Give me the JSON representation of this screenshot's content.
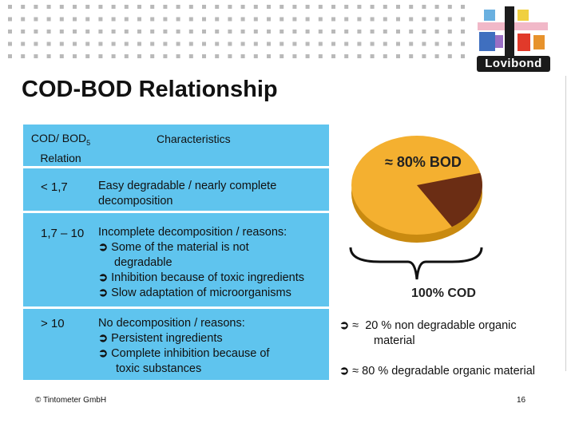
{
  "title": "COD-BOD Relationship",
  "table": {
    "header_left_line1": "COD/ BOD",
    "header_left_sub": "5",
    "header_left_line2": "Relation",
    "header_right": "Characteristics",
    "rows": [
      {
        "relation": "< 1,7",
        "lines": [
          "Easy degradable / nearly complete",
          "decomposition"
        ]
      },
      {
        "relation": "1,7 – 10",
        "lines": [
          "Incomplete decomposition / reasons:"
        ],
        "bullets": [
          "Some of the material is not",
          "degradable",
          "Inhibition because of toxic ingredients",
          "Slow adaptation of microorganisms"
        ]
      },
      {
        "relation": "> 10",
        "lines": [
          "No decomposition / reasons:"
        ],
        "bullets": [
          "Persistent ingredients",
          "Complete inhibition because of",
          "toxic substances"
        ]
      }
    ]
  },
  "figure": {
    "bod_label": "≈ 80% BOD",
    "cod_label": "100% COD",
    "slices": [
      {
        "name": "degradable",
        "fraction": 0.8,
        "color": "#f4b030"
      },
      {
        "name": "non degradable",
        "fraction": 0.2,
        "color": "#6b2d14"
      }
    ]
  },
  "notes": {
    "arrow": "➲",
    "approx": "≈",
    "note1_line1": "20 % non degradable organic",
    "note1_line2": "material",
    "note2": "80 % degradable organic material"
  },
  "footer": {
    "copyright": "© Tintometer GmbH",
    "page_number": "16"
  },
  "logo": {
    "brand": "Lovibond"
  },
  "colors": {
    "table_bg": "#5fc4ee",
    "pie_top": "#f4b030",
    "pie_rim": "#c98a10",
    "pie_slice": "#6b2d14"
  }
}
